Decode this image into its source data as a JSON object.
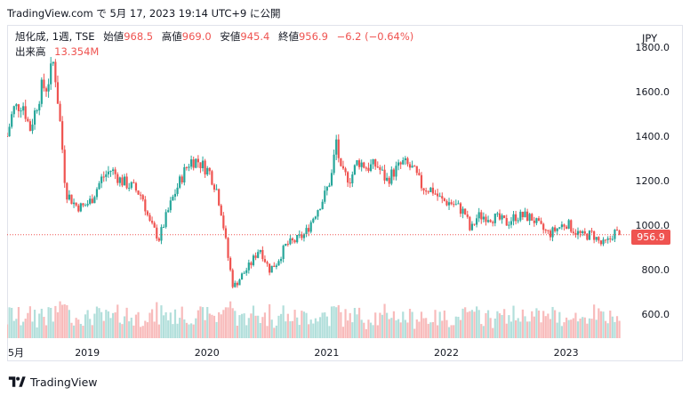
{
  "header": {
    "text": "TradingView.com で 5月 17, 2023 19:14 UTC+9 に公開"
  },
  "legend": {
    "symbol": "旭化成, 1週, TSE",
    "open_label": "始値",
    "open_value": "968.5",
    "high_label": "高値",
    "high_value": "969.0",
    "low_label": "安値",
    "low_value": "945.4",
    "close_label": "終値",
    "close_value": "956.9",
    "change": "−6.2 (−0.64%)",
    "volume_label": "出来高",
    "volume_value": "13.354M"
  },
  "currency": "JPY",
  "last_price": "956.9",
  "colors": {
    "up": "#26a69a",
    "down": "#ef5350",
    "up_volume": "#b2dfdb",
    "down_volume": "#f8bbbb"
  },
  "footer": {
    "brand": "TradingView"
  },
  "chart_data": {
    "type": "candlestick",
    "y_axis": {
      "labels": [
        "600.0",
        "800.0",
        "1000.0",
        "1200.0",
        "1400.0",
        "1600.0",
        "1800.0"
      ],
      "range": [
        560,
        1800
      ]
    },
    "x_axis": {
      "labels": [
        "5月",
        "2019",
        "2020",
        "2021",
        "2022",
        "2023"
      ]
    },
    "price_path": [
      [
        2018.33,
        1400
      ],
      [
        2018.38,
        1520
      ],
      [
        2018.46,
        1550
      ],
      [
        2018.52,
        1430
      ],
      [
        2018.62,
        1620
      ],
      [
        2018.66,
        1620
      ],
      [
        2018.72,
        1740
      ],
      [
        2018.78,
        1420
      ],
      [
        2018.82,
        1150
      ],
      [
        2018.9,
        1090
      ],
      [
        2018.96,
        1080
      ],
      [
        2019.03,
        1110
      ],
      [
        2019.12,
        1210
      ],
      [
        2019.2,
        1250
      ],
      [
        2019.28,
        1200
      ],
      [
        2019.38,
        1170
      ],
      [
        2019.46,
        1130
      ],
      [
        2019.52,
        1010
      ],
      [
        2019.6,
        940
      ],
      [
        2019.66,
        1040
      ],
      [
        2019.72,
        1130
      ],
      [
        2019.8,
        1230
      ],
      [
        2019.86,
        1290
      ],
      [
        2019.92,
        1290
      ],
      [
        2020.02,
        1240
      ],
      [
        2020.08,
        1160
      ],
      [
        2020.12,
        1060
      ],
      [
        2020.18,
        840
      ],
      [
        2020.22,
        720
      ],
      [
        2020.3,
        780
      ],
      [
        2020.36,
        820
      ],
      [
        2020.44,
        900
      ],
      [
        2020.52,
        800
      ],
      [
        2020.58,
        830
      ],
      [
        2020.66,
        910
      ],
      [
        2020.74,
        930
      ],
      [
        2020.82,
        960
      ],
      [
        2020.9,
        1050
      ],
      [
        2020.98,
        1130
      ],
      [
        2021.04,
        1220
      ],
      [
        2021.08,
        1380
      ],
      [
        2021.12,
        1230
      ],
      [
        2021.2,
        1210
      ],
      [
        2021.26,
        1290
      ],
      [
        2021.34,
        1260
      ],
      [
        2021.42,
        1270
      ],
      [
        2021.5,
        1200
      ],
      [
        2021.56,
        1240
      ],
      [
        2021.64,
        1280
      ],
      [
        2021.72,
        1250
      ],
      [
        2021.8,
        1170
      ],
      [
        2021.88,
        1160
      ],
      [
        2021.96,
        1110
      ],
      [
        2022.04,
        1100
      ],
      [
        2022.1,
        1080
      ],
      [
        2022.16,
        1050
      ],
      [
        2022.2,
        970
      ],
      [
        2022.26,
        1040
      ],
      [
        2022.34,
        1040
      ],
      [
        2022.42,
        1030
      ],
      [
        2022.5,
        1010
      ],
      [
        2022.58,
        1040
      ],
      [
        2022.66,
        1040
      ],
      [
        2022.72,
        1030
      ],
      [
        2022.78,
        990
      ],
      [
        2022.86,
        960
      ],
      [
        2022.94,
        990
      ],
      [
        2023.0,
        1010
      ],
      [
        2023.08,
        970
      ],
      [
        2023.14,
        950
      ],
      [
        2023.22,
        960
      ],
      [
        2023.3,
        910
      ],
      [
        2023.36,
        930
      ],
      [
        2023.4,
        970
      ],
      [
        2023.44,
        956.9
      ]
    ]
  }
}
